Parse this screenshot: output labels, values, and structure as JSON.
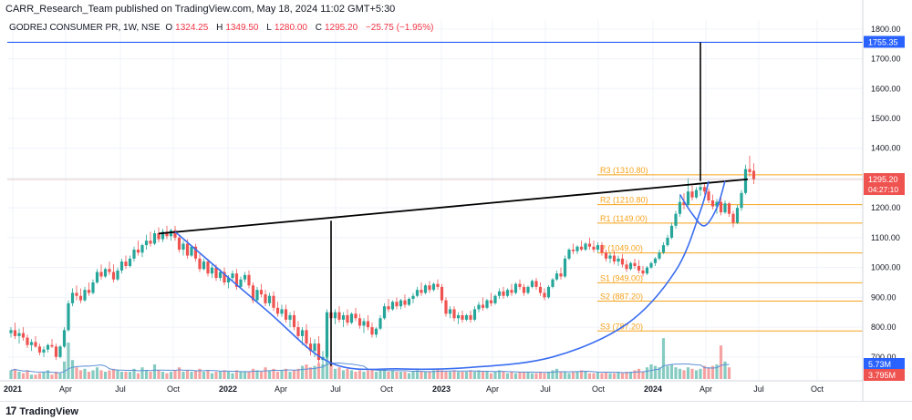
{
  "header": {
    "published_line": "CARR_Research_Team published on TradingView.com, May 18, 2024 11:02 GMT+5:30"
  },
  "legend": {
    "symbol": "GODREJ CONSUMER PR, 1W, NSE",
    "open_label": "O",
    "open": "1324.25",
    "high_label": "H",
    "high": "1349.50",
    "low_label": "L",
    "low": "1280.00",
    "close_label": "C",
    "close": "1295.20",
    "change": "−25.75 (−1.95%)"
  },
  "footer": {
    "brand": "TradingView",
    "logo_icon": "tradingview-logo-icon"
  },
  "colors": {
    "up": "#26a69a",
    "down": "#ef5350",
    "blue_line": "#2962ff",
    "pivot": "#f7a21b",
    "trend": "#000000",
    "arc": "#3a6df0",
    "vol_up": "#86cbc2",
    "vol_down": "#f5a3a2",
    "vol_ma": "#5b8fd6",
    "price_tag": "#ef5350"
  },
  "chart_data": {
    "type": "candlestick",
    "x_axis_labels": [
      "2021",
      "Apr",
      "Jul",
      "Oct",
      "2022",
      "Apr",
      "Jul",
      "Oct",
      "2023",
      "Apr",
      "Jul",
      "Oct",
      "2024",
      "Apr",
      "Jul",
      "Oct"
    ],
    "y_ticks": [
      700,
      800,
      900,
      1000,
      1100,
      1200,
      1300,
      1400,
      1500,
      1600,
      1700,
      1800
    ],
    "y_range": [
      620,
      1830
    ],
    "price_tags": [
      {
        "label": "1755.35",
        "value": 1755.35,
        "style": "blue"
      },
      {
        "label": "1295.20",
        "value": 1295.2,
        "style": "red",
        "sub": "04:27:10"
      },
      {
        "label": "5.73M",
        "style": "blue-volume"
      },
      {
        "label": "3.795M",
        "style": "red-volume"
      }
    ],
    "pivots": [
      {
        "label": "R3 (1310.80)",
        "value": 1310.8
      },
      {
        "label": "R2 (1210.80)",
        "value": 1210.8
      },
      {
        "label": "R1 (1149.00)",
        "value": 1149.0
      },
      {
        "label": "P (1049.00)",
        "value": 1049.0
      },
      {
        "label": "S1 (949.00)",
        "value": 949.0
      },
      {
        "label": "S2 (887.20)",
        "value": 887.2
      },
      {
        "label": "S3 (787.20)",
        "value": 787.2
      }
    ],
    "current_price": 1295.2,
    "horizontal_level": 1755.35,
    "trendline": [
      {
        "week": 40,
        "price": 1120
      },
      {
        "week": 174,
        "price": 1290
      }
    ],
    "measure_lines": [
      {
        "week": 78,
        "from": 670,
        "to": 1157
      },
      {
        "week": 168,
        "from": 1290,
        "to": 1755.35
      }
    ],
    "cup_arc": [
      [
        40,
        1120
      ],
      [
        62,
        860
      ],
      [
        78,
        680
      ],
      [
        95,
        660
      ],
      [
        112,
        665
      ],
      [
        132,
        700
      ],
      [
        150,
        810
      ],
      [
        162,
        990
      ],
      [
        168,
        1190
      ],
      [
        170,
        1290
      ]
    ],
    "handle_arc": [
      [
        163,
        1245
      ],
      [
        166,
        1180
      ],
      [
        169,
        1140
      ],
      [
        172,
        1200
      ],
      [
        174,
        1290
      ]
    ],
    "ohlc": [
      [
        780,
        800,
        765,
        790
      ],
      [
        790,
        815,
        760,
        770
      ],
      [
        770,
        795,
        745,
        780
      ],
      [
        780,
        800,
        755,
        765
      ],
      [
        765,
        775,
        730,
        740
      ],
      [
        740,
        760,
        720,
        750
      ],
      [
        750,
        770,
        730,
        735
      ],
      [
        735,
        745,
        705,
        715
      ],
      [
        715,
        735,
        700,
        725
      ],
      [
        725,
        745,
        715,
        740
      ],
      [
        740,
        760,
        730,
        735
      ],
      [
        735,
        745,
        690,
        700
      ],
      [
        700,
        740,
        695,
        735
      ],
      [
        735,
        800,
        730,
        790
      ],
      [
        790,
        890,
        785,
        880
      ],
      [
        880,
        930,
        870,
        915
      ],
      [
        915,
        940,
        890,
        905
      ],
      [
        905,
        930,
        880,
        890
      ],
      [
        890,
        935,
        885,
        925
      ],
      [
        925,
        950,
        905,
        915
      ],
      [
        915,
        960,
        910,
        950
      ],
      [
        950,
        995,
        945,
        985
      ],
      [
        985,
        1010,
        960,
        970
      ],
      [
        970,
        1000,
        965,
        995
      ],
      [
        995,
        1020,
        975,
        985
      ],
      [
        985,
        1010,
        950,
        960
      ],
      [
        960,
        1000,
        955,
        990
      ],
      [
        990,
        1030,
        980,
        1020
      ],
      [
        1020,
        1040,
        995,
        1005
      ],
      [
        1005,
        1040,
        1000,
        1030
      ],
      [
        1030,
        1070,
        1020,
        1060
      ],
      [
        1060,
        1090,
        1040,
        1050
      ],
      [
        1050,
        1080,
        1035,
        1075
      ],
      [
        1075,
        1110,
        1060,
        1090
      ],
      [
        1090,
        1120,
        1070,
        1080
      ],
      [
        1080,
        1125,
        1075,
        1115
      ],
      [
        1115,
        1135,
        1085,
        1095
      ],
      [
        1095,
        1130,
        1085,
        1120
      ],
      [
        1120,
        1140,
        1095,
        1105
      ],
      [
        1105,
        1130,
        1090,
        1125
      ],
      [
        1125,
        1140,
        1090,
        1100
      ],
      [
        1100,
        1110,
        1050,
        1060
      ],
      [
        1060,
        1090,
        1040,
        1080
      ],
      [
        1080,
        1095,
        1030,
        1040
      ],
      [
        1040,
        1075,
        1035,
        1070
      ],
      [
        1070,
        1080,
        1020,
        1030
      ],
      [
        1030,
        1045,
        985,
        995
      ],
      [
        995,
        1030,
        990,
        1020
      ],
      [
        1020,
        1030,
        970,
        980
      ],
      [
        980,
        1010,
        965,
        1000
      ],
      [
        1000,
        1010,
        955,
        965
      ],
      [
        965,
        995,
        955,
        985
      ],
      [
        985,
        1000,
        940,
        950
      ],
      [
        950,
        975,
        930,
        965
      ],
      [
        965,
        990,
        955,
        980
      ],
      [
        980,
        995,
        925,
        935
      ],
      [
        935,
        970,
        930,
        960
      ],
      [
        960,
        985,
        950,
        975
      ],
      [
        975,
        990,
        930,
        940
      ],
      [
        940,
        950,
        880,
        890
      ],
      [
        890,
        935,
        885,
        925
      ],
      [
        925,
        945,
        900,
        910
      ],
      [
        910,
        925,
        870,
        880
      ],
      [
        880,
        915,
        870,
        905
      ],
      [
        905,
        920,
        855,
        865
      ],
      [
        865,
        885,
        835,
        845
      ],
      [
        845,
        875,
        835,
        860
      ],
      [
        860,
        875,
        815,
        825
      ],
      [
        825,
        850,
        800,
        840
      ],
      [
        840,
        855,
        790,
        800
      ],
      [
        800,
        820,
        760,
        770
      ],
      [
        770,
        800,
        740,
        790
      ],
      [
        790,
        810,
        730,
        745
      ],
      [
        745,
        765,
        705,
        720
      ],
      [
        720,
        760,
        700,
        745
      ],
      [
        745,
        770,
        680,
        690
      ],
      [
        690,
        720,
        670,
        700
      ],
      [
        700,
        860,
        695,
        850
      ],
      [
        850,
        880,
        820,
        830
      ],
      [
        830,
        860,
        810,
        850
      ],
      [
        850,
        870,
        815,
        825
      ],
      [
        825,
        850,
        800,
        840
      ],
      [
        840,
        860,
        805,
        815
      ],
      [
        815,
        850,
        810,
        845
      ],
      [
        845,
        865,
        820,
        830
      ],
      [
        830,
        845,
        795,
        805
      ],
      [
        805,
        830,
        780,
        820
      ],
      [
        820,
        840,
        790,
        800
      ],
      [
        800,
        815,
        765,
        775
      ],
      [
        775,
        800,
        765,
        795
      ],
      [
        795,
        840,
        790,
        830
      ],
      [
        830,
        880,
        825,
        870
      ],
      [
        870,
        895,
        850,
        860
      ],
      [
        860,
        890,
        855,
        885
      ],
      [
        885,
        900,
        860,
        870
      ],
      [
        870,
        895,
        860,
        890
      ],
      [
        890,
        910,
        865,
        875
      ],
      [
        875,
        900,
        870,
        895
      ],
      [
        895,
        915,
        880,
        905
      ],
      [
        905,
        935,
        900,
        925
      ],
      [
        925,
        950,
        905,
        915
      ],
      [
        915,
        945,
        910,
        940
      ],
      [
        940,
        955,
        915,
        925
      ],
      [
        925,
        950,
        920,
        945
      ],
      [
        945,
        960,
        925,
        935
      ],
      [
        935,
        945,
        880,
        890
      ],
      [
        890,
        900,
        835,
        845
      ],
      [
        845,
        870,
        830,
        860
      ],
      [
        860,
        870,
        820,
        830
      ],
      [
        830,
        850,
        810,
        840
      ],
      [
        840,
        855,
        815,
        825
      ],
      [
        825,
        845,
        820,
        840
      ],
      [
        840,
        855,
        815,
        825
      ],
      [
        825,
        870,
        820,
        860
      ],
      [
        860,
        885,
        850,
        875
      ],
      [
        875,
        900,
        855,
        865
      ],
      [
        865,
        895,
        860,
        890
      ],
      [
        890,
        915,
        870,
        880
      ],
      [
        880,
        910,
        875,
        905
      ],
      [
        905,
        930,
        895,
        920
      ],
      [
        920,
        935,
        895,
        905
      ],
      [
        905,
        930,
        900,
        925
      ],
      [
        925,
        945,
        905,
        915
      ],
      [
        915,
        950,
        910,
        945
      ],
      [
        945,
        960,
        925,
        935
      ],
      [
        935,
        945,
        905,
        915
      ],
      [
        915,
        940,
        910,
        935
      ],
      [
        935,
        960,
        930,
        955
      ],
      [
        955,
        965,
        925,
        935
      ],
      [
        935,
        950,
        905,
        915
      ],
      [
        915,
        930,
        890,
        900
      ],
      [
        900,
        940,
        895,
        935
      ],
      [
        935,
        965,
        930,
        960
      ],
      [
        960,
        990,
        955,
        980
      ],
      [
        980,
        1000,
        960,
        970
      ],
      [
        970,
        1040,
        965,
        1030
      ],
      [
        1030,
        1065,
        1025,
        1060
      ],
      [
        1060,
        1080,
        1045,
        1055
      ],
      [
        1055,
        1075,
        1045,
        1070
      ],
      [
        1070,
        1090,
        1055,
        1060
      ],
      [
        1060,
        1085,
        1055,
        1080
      ],
      [
        1080,
        1100,
        1060,
        1070
      ],
      [
        1070,
        1090,
        1050,
        1060
      ],
      [
        1060,
        1085,
        1050,
        1075
      ],
      [
        1075,
        1085,
        1040,
        1050
      ],
      [
        1050,
        1060,
        1020,
        1030
      ],
      [
        1030,
        1050,
        1015,
        1040
      ],
      [
        1040,
        1055,
        1010,
        1020
      ],
      [
        1020,
        1040,
        1005,
        1030
      ],
      [
        1030,
        1045,
        1000,
        1010
      ],
      [
        1010,
        1025,
        985,
        995
      ],
      [
        995,
        1020,
        990,
        1015
      ],
      [
        1015,
        1030,
        995,
        1005
      ],
      [
        1005,
        1025,
        980,
        990
      ],
      [
        990,
        1005,
        970,
        980
      ],
      [
        980,
        1005,
        975,
        1000
      ],
      [
        1000,
        1020,
        995,
        1015
      ],
      [
        1015,
        1035,
        1005,
        1030
      ],
      [
        1030,
        1060,
        1025,
        1050
      ],
      [
        1050,
        1085,
        1045,
        1075
      ],
      [
        1075,
        1110,
        1070,
        1100
      ],
      [
        1100,
        1150,
        1095,
        1140
      ],
      [
        1140,
        1190,
        1130,
        1180
      ],
      [
        1180,
        1240,
        1170,
        1220
      ],
      [
        1220,
        1250,
        1195,
        1210
      ],
      [
        1210,
        1300,
        1205,
        1255
      ],
      [
        1255,
        1275,
        1225,
        1235
      ],
      [
        1235,
        1270,
        1230,
        1260
      ],
      [
        1260,
        1280,
        1240,
        1270
      ],
      [
        1270,
        1285,
        1245,
        1255
      ],
      [
        1255,
        1265,
        1215,
        1225
      ],
      [
        1225,
        1245,
        1195,
        1205
      ],
      [
        1205,
        1230,
        1180,
        1220
      ],
      [
        1220,
        1235,
        1175,
        1185
      ],
      [
        1185,
        1225,
        1180,
        1215
      ],
      [
        1215,
        1220,
        1170,
        1180
      ],
      [
        1180,
        1190,
        1135,
        1150
      ],
      [
        1150,
        1210,
        1145,
        1200
      ],
      [
        1200,
        1260,
        1190,
        1250
      ],
      [
        1250,
        1345,
        1245,
        1330
      ],
      [
        1330,
        1375,
        1305,
        1320
      ],
      [
        1324.25,
        1349.5,
        1280,
        1295.2
      ]
    ],
    "volume": [
      0.6,
      0.7,
      0.5,
      0.4,
      0.6,
      0.3,
      0.3,
      0.4,
      0.5,
      0.6,
      0.3,
      0.5,
      0.4,
      1.2,
      2.5,
      1.3,
      0.8,
      0.6,
      0.7,
      0.5,
      0.6,
      0.8,
      0.6,
      0.5,
      0.6,
      0.7,
      0.6,
      0.5,
      0.5,
      0.5,
      0.7,
      0.4,
      0.8,
      0.6,
      0.5,
      1.0,
      0.6,
      0.5,
      0.4,
      0.5,
      0.6,
      0.8,
      0.5,
      0.6,
      0.5,
      0.6,
      0.7,
      0.5,
      0.6,
      0.4,
      0.5,
      0.5,
      0.6,
      0.5,
      0.4,
      0.6,
      0.5,
      0.5,
      0.5,
      0.7,
      0.6,
      0.5,
      0.8,
      0.6,
      0.7,
      0.5,
      0.6,
      0.7,
      0.5,
      0.6,
      0.7,
      0.9,
      1.0,
      0.8,
      0.9,
      1.1,
      1.0,
      2.6,
      1.2,
      0.7,
      0.8,
      0.6,
      0.7,
      0.6,
      0.5,
      0.6,
      0.5,
      0.6,
      0.7,
      0.5,
      0.6,
      0.7,
      0.5,
      0.6,
      0.5,
      0.5,
      0.5,
      0.4,
      0.5,
      0.6,
      0.5,
      0.5,
      0.5,
      0.6,
      0.7,
      0.6,
      0.5,
      0.5,
      0.6,
      0.5,
      0.5,
      0.5,
      0.6,
      0.5,
      0.6,
      0.5,
      0.5,
      0.4,
      0.5,
      0.6,
      0.5,
      0.4,
      0.5,
      0.4,
      0.5,
      0.5,
      0.5,
      0.4,
      0.4,
      0.5,
      0.4,
      0.5,
      0.6,
      0.7,
      0.5,
      0.5,
      0.4,
      0.5,
      0.5,
      0.6,
      0.5,
      0.4,
      0.4,
      0.5,
      0.4,
      0.5,
      0.4,
      0.4,
      0.5,
      0.4,
      0.5,
      0.5,
      0.6,
      0.7,
      0.5,
      0.8,
      1.0,
      0.9,
      0.8,
      2.8,
      0.9,
      1.0,
      0.8,
      0.7,
      0.6,
      0.8,
      0.7,
      0.6,
      0.7,
      0.9,
      0.8,
      0.9,
      1.0,
      2.3,
      1.2,
      0.8
    ]
  }
}
